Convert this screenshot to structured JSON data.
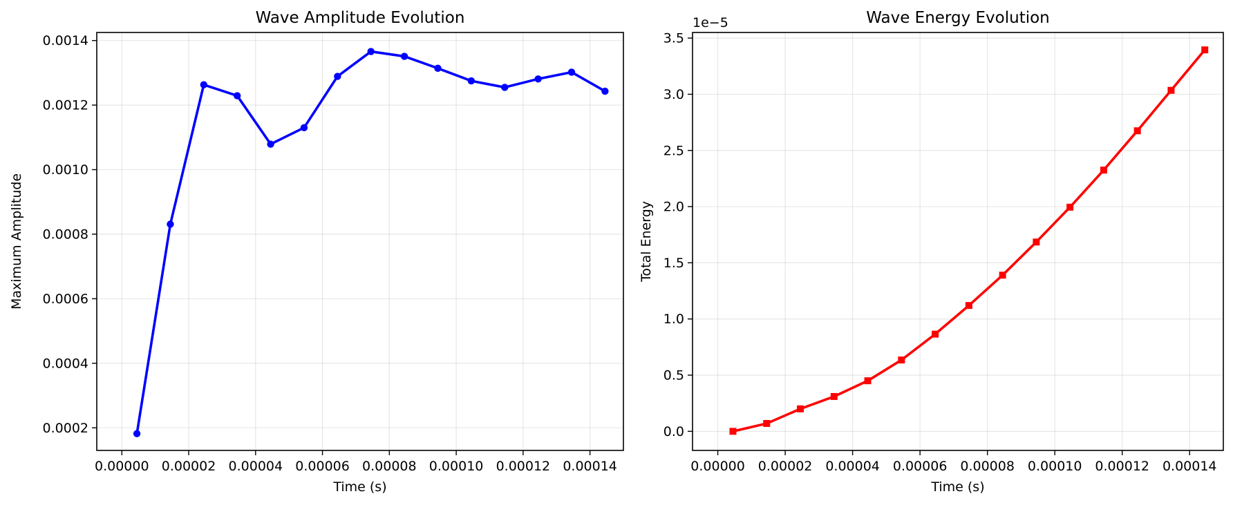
{
  "chart_data": [
    {
      "type": "line",
      "title": "Wave Amplitude Evolution",
      "xlabel": "Time (s)",
      "ylabel": "Maximum Amplitude",
      "xlim": [
        -7.5e-06,
        0.00015
      ],
      "ylim": [
        0.00013,
        0.001425
      ],
      "xticks": [
        0,
        2e-05,
        4e-05,
        6e-05,
        8e-05,
        0.0001,
        0.00012,
        0.00014
      ],
      "xtick_labels": [
        "0.00000",
        "0.00002",
        "0.00004",
        "0.00006",
        "0.00008",
        "0.00010",
        "0.00012",
        "0.00014"
      ],
      "yticks": [
        0.0002,
        0.0004,
        0.0006,
        0.0008,
        0.001,
        0.0012,
        0.0014
      ],
      "ytick_labels": [
        "0.0002",
        "0.0004",
        "0.0006",
        "0.0008",
        "0.0010",
        "0.0012",
        "0.0014"
      ],
      "offset_label": "",
      "grid": true,
      "color": "#0000ff",
      "marker": "circle",
      "series": [
        {
          "x": [
            4.5e-06,
            1.45e-05,
            2.45e-05,
            3.45e-05,
            4.45e-05,
            5.45e-05,
            6.45e-05,
            7.45e-05,
            8.45e-05,
            9.45e-05,
            0.0001045,
            0.0001145,
            0.0001245,
            0.0001345,
            0.0001445
          ],
          "y": [
            0.000182,
            0.000831,
            0.001263,
            0.001229,
            0.001079,
            0.00113,
            0.001289,
            0.001366,
            0.001351,
            0.001314,
            0.001275,
            0.001255,
            0.001281,
            0.001302,
            0.001243
          ]
        }
      ]
    },
    {
      "type": "line",
      "title": "Wave Energy Evolution",
      "xlabel": "Time (s)",
      "ylabel": "Total Energy",
      "xlim": [
        -7.5e-06,
        0.00015
      ],
      "ylim": [
        -0.17,
        3.55
      ],
      "xticks": [
        0,
        2e-05,
        4e-05,
        6e-05,
        8e-05,
        0.0001,
        0.00012,
        0.00014
      ],
      "xtick_labels": [
        "0.00000",
        "0.00002",
        "0.00004",
        "0.00006",
        "0.00008",
        "0.00010",
        "0.00012",
        "0.00014"
      ],
      "yticks": [
        0,
        0.5,
        1,
        1.5,
        2,
        2.5,
        3,
        3.5
      ],
      "ytick_labels": [
        "0.0",
        "0.5",
        "1.0",
        "1.5",
        "2.0",
        "2.5",
        "3.0",
        "3.5"
      ],
      "offset_label": "1e−5",
      "grid": true,
      "color": "#ff0000",
      "marker": "square",
      "series": [
        {
          "x": [
            4.5e-06,
            1.45e-05,
            2.45e-05,
            3.45e-05,
            4.45e-05,
            5.45e-05,
            6.45e-05,
            7.45e-05,
            8.45e-05,
            9.45e-05,
            0.0001045,
            0.0001145,
            0.0001245,
            0.0001345,
            0.0001445
          ],
          "y": [
            0.0,
            0.07,
            0.2,
            0.31,
            0.45,
            0.635,
            0.865,
            1.12,
            1.39,
            1.685,
            1.995,
            2.325,
            2.675,
            3.035,
            3.395
          ]
        }
      ]
    }
  ]
}
